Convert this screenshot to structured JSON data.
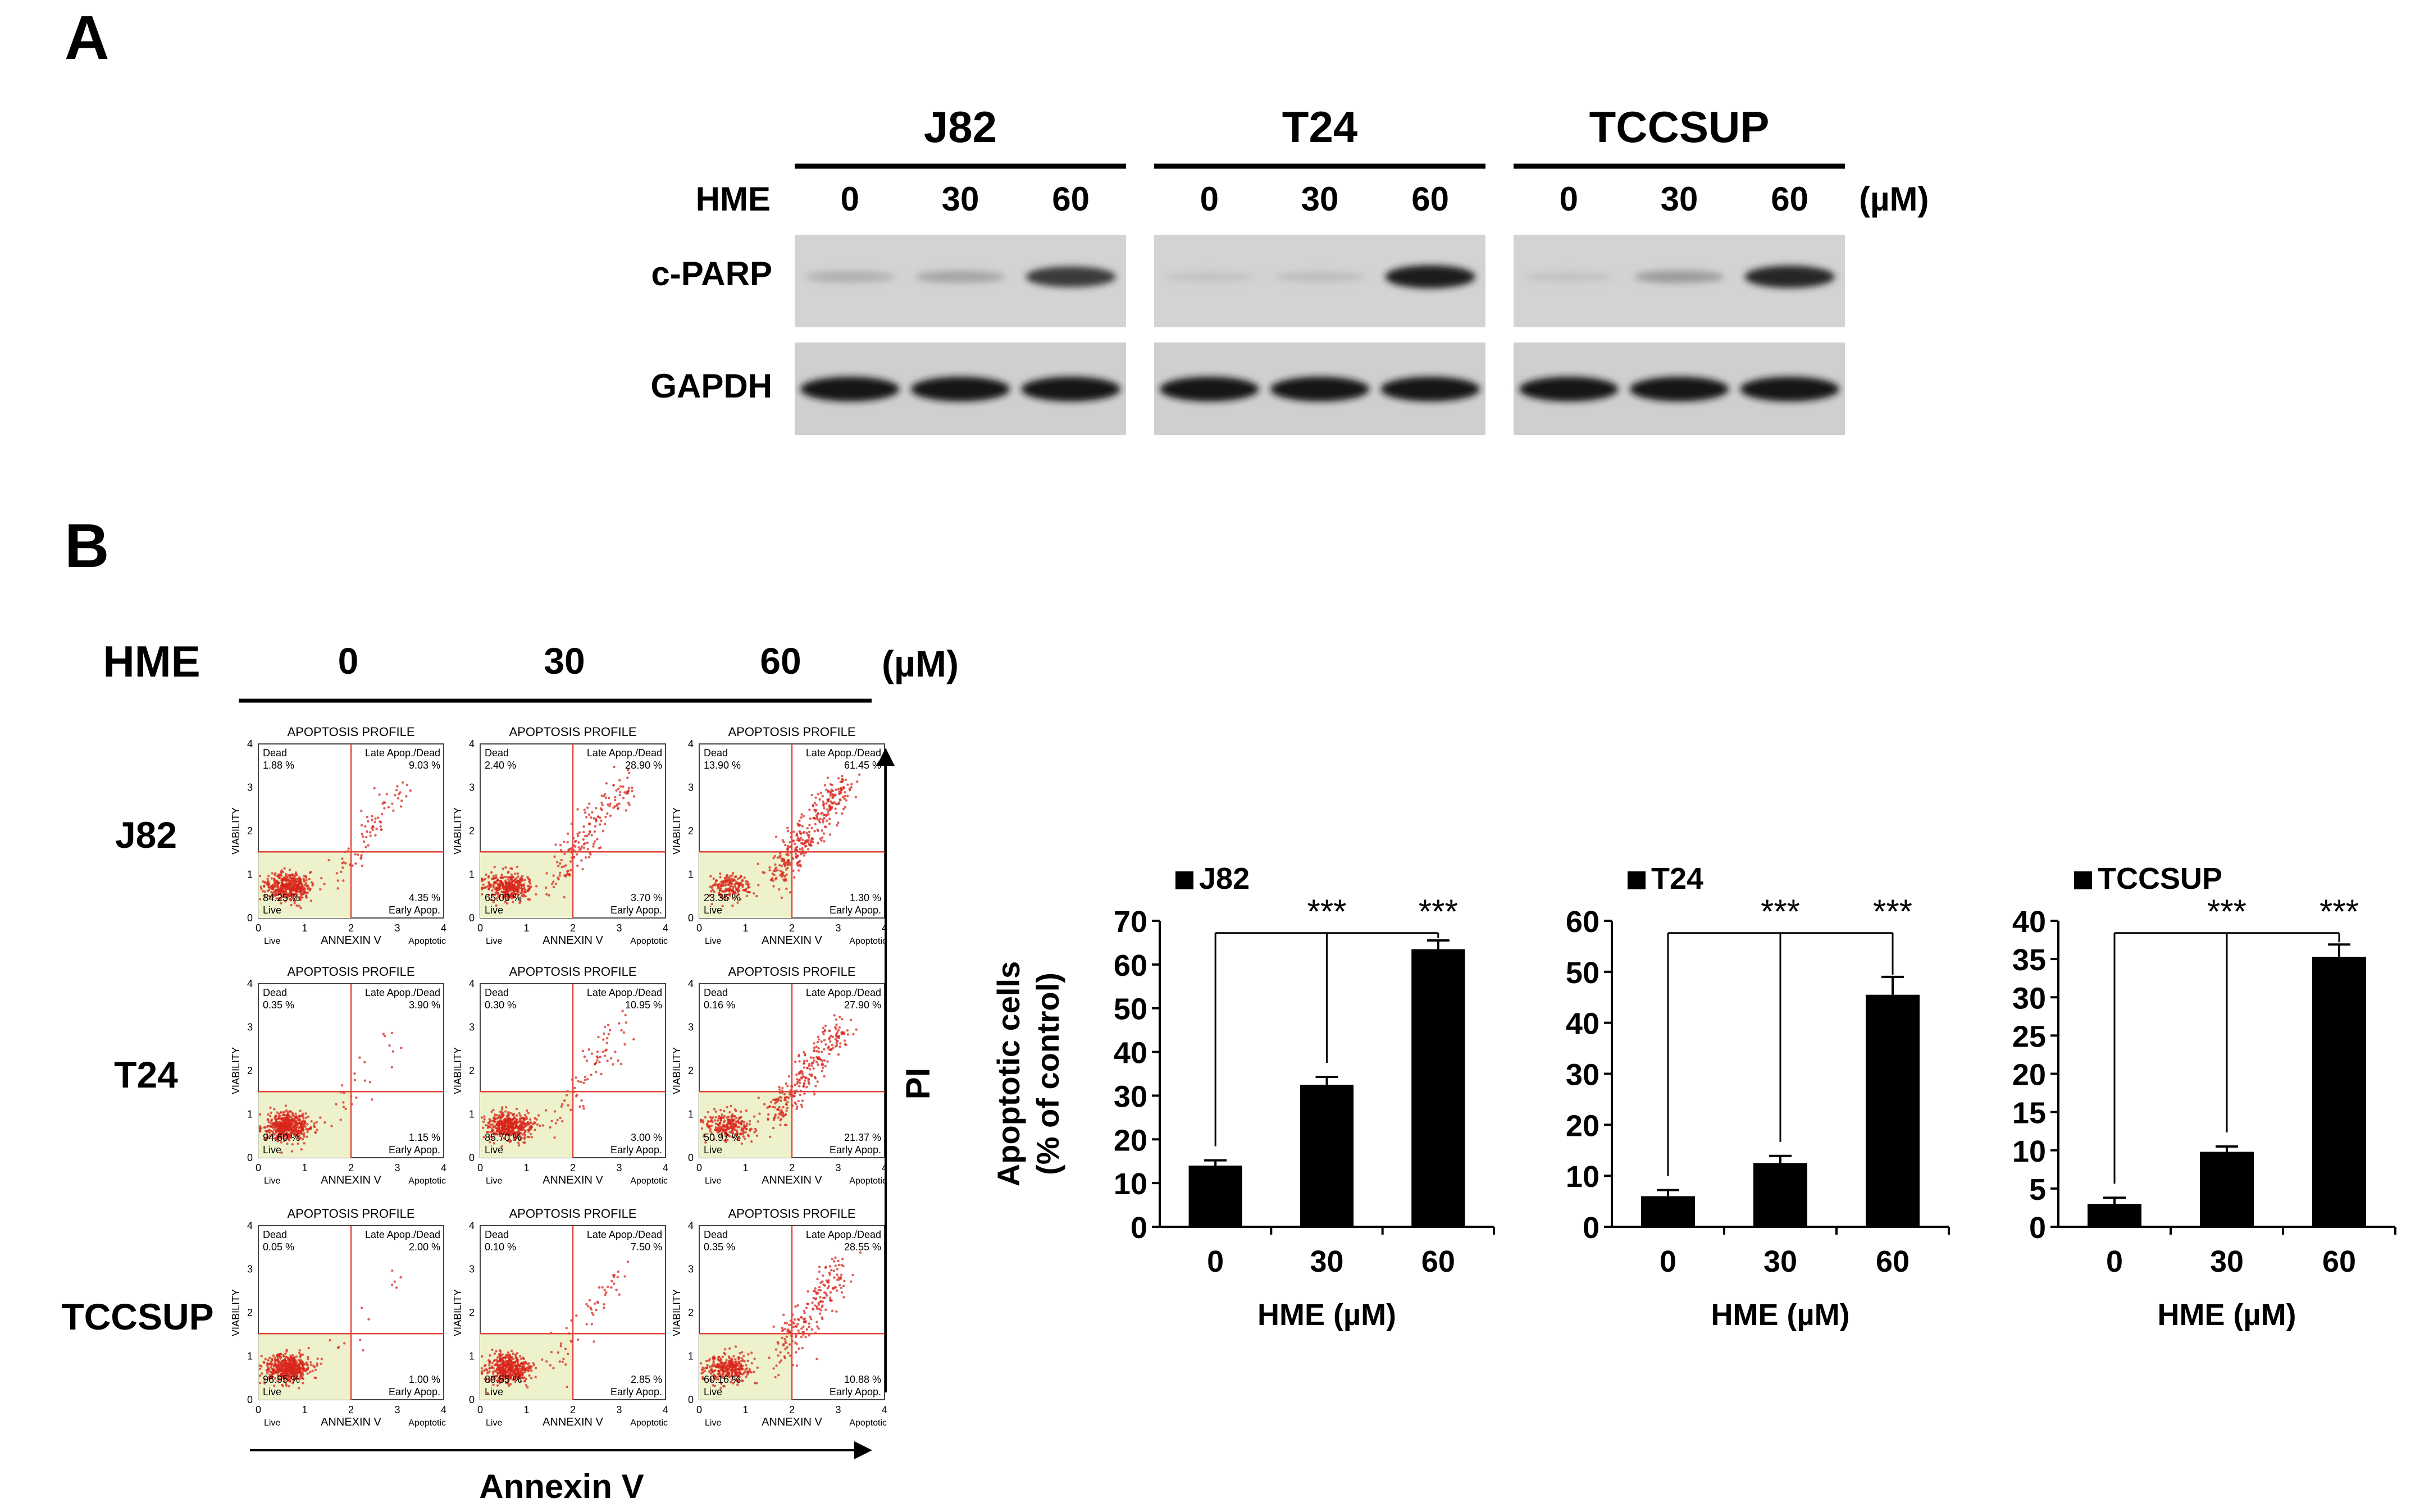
{
  "panel_a": {
    "label": "A",
    "treatment_label": "HME",
    "unit": "(µM)",
    "cell_lines": [
      "J82",
      "T24",
      "TCCSUP"
    ],
    "doses": [
      "0",
      "30",
      "60"
    ],
    "rows": [
      "c-PARP",
      "GAPDH"
    ],
    "cparp_band_intensity": [
      [
        0.15,
        0.2,
        0.75
      ],
      [
        0.05,
        0.08,
        0.9
      ],
      [
        0.05,
        0.25,
        0.85
      ]
    ]
  },
  "panel_b": {
    "label": "B",
    "treatment_label": "HME",
    "unit": "(µM)",
    "doses": [
      "0",
      "30",
      "60"
    ],
    "cell_lines": [
      "J82",
      "T24",
      "TCCSUP"
    ],
    "y_axis_side_label": "PI",
    "x_axis_bottom_label": "Annexin V",
    "flow_plot": {
      "title": "APOPTOSIS PROFILE",
      "x_label": "ANNEXIN V",
      "y_label": "VIABILITY",
      "q_dead": "Dead",
      "q_late": "Late Apop./Dead",
      "q_live": "Live",
      "q_early": "Early Apop.",
      "tick_x": [
        "0",
        "1",
        "2",
        "3",
        "4"
      ],
      "tick_y": [
        "0",
        "1",
        "2",
        "3",
        "4"
      ],
      "bottom_left": "Live",
      "bottom_right": "Apoptotic"
    },
    "flow_values": [
      [
        [
          "1.88 %",
          "9.03 %",
          "84.25 %",
          "4.35 %"
        ],
        [
          "2.40 %",
          "28.90 %",
          "65.00 %",
          "3.70 %"
        ],
        [
          "13.90 %",
          "61.45 %",
          "23.35 %",
          "1.30 %"
        ]
      ],
      [
        [
          "0.35 %",
          "3.90 %",
          "94.60 %",
          "1.15 %"
        ],
        [
          "0.30 %",
          "10.95 %",
          "85.70 %",
          "3.00 %"
        ],
        [
          "0.16 %",
          "27.90 %",
          "50.97 %",
          "21.37 %"
        ]
      ],
      [
        [
          "0.05 %",
          "2.00 %",
          "96.95 %",
          "1.00 %"
        ],
        [
          "0.10 %",
          "7.50 %",
          "89.55 %",
          "2.85 %"
        ],
        [
          "0.35 %",
          "28.55 %",
          "60.16 %",
          "10.88 %"
        ]
      ]
    ],
    "flow_apoptotic_fraction": [
      [
        0.13,
        0.33,
        0.63
      ],
      [
        0.05,
        0.14,
        0.49
      ],
      [
        0.03,
        0.1,
        0.39
      ]
    ]
  },
  "chart_data": [
    {
      "type": "bar",
      "legend": "J82",
      "categories": [
        "0",
        "30",
        "60"
      ],
      "values": [
        14,
        32.5,
        63.5
      ],
      "errors": [
        1.2,
        1.8,
        2
      ],
      "ylim": [
        0,
        70
      ],
      "yticks": [
        "0",
        "10",
        "20",
        "30",
        "40",
        "50",
        "60",
        "70"
      ],
      "ylabel_line1": "Apoptotic cells",
      "ylabel_line2": "(% of control)",
      "xlabel": "HME (µM)",
      "significance": [
        "***",
        "***"
      ]
    },
    {
      "type": "bar",
      "legend": "T24",
      "categories": [
        "0",
        "30",
        "60"
      ],
      "values": [
        6,
        12.5,
        45.5
      ],
      "errors": [
        1.2,
        1.4,
        3.5
      ],
      "ylim": [
        0,
        60
      ],
      "yticks": [
        "0",
        "10",
        "20",
        "30",
        "40",
        "50",
        "60"
      ],
      "xlabel": "HME (µM)",
      "significance": [
        "***",
        "***"
      ]
    },
    {
      "type": "bar",
      "legend": "TCCSUP",
      "categories": [
        "0",
        "30",
        "60"
      ],
      "values": [
        3,
        9.8,
        35.3
      ],
      "errors": [
        0.8,
        0.7,
        1.6
      ],
      "ylim": [
        0,
        40
      ],
      "yticks": [
        "0",
        "5",
        "10",
        "15",
        "20",
        "25",
        "30",
        "35",
        "40"
      ],
      "xlabel": "HME (µM)",
      "significance": [
        "***",
        "***"
      ]
    }
  ]
}
